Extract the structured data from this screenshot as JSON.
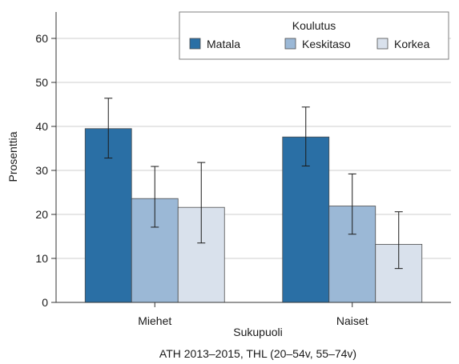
{
  "chart_data": {
    "type": "bar",
    "categories": [
      "Miehet",
      "Naiset"
    ],
    "series": [
      {
        "name": "Matala",
        "values": [
          39.5,
          37.6
        ],
        "ci_low": [
          32.8,
          31.0
        ],
        "ci_high": [
          46.4,
          44.4
        ],
        "color": "#2a6fa5"
      },
      {
        "name": "Keskitaso",
        "values": [
          23.6,
          21.9
        ],
        "ci_low": [
          17.1,
          15.5
        ],
        "ci_high": [
          30.9,
          29.2
        ],
        "color": "#9bb8d6"
      },
      {
        "name": "Korkea",
        "values": [
          21.6,
          13.2
        ],
        "ci_low": [
          13.5,
          7.7
        ],
        "ci_high": [
          31.8,
          20.6
        ],
        "color": "#d9e1ec"
      }
    ],
    "ylabel": "Prosenttia",
    "xlabel": "Sukupuoli",
    "caption": "ATH 2013–2015, THL (20–54v, 55–74v)",
    "legend_title": "Koulutus",
    "legend_position": "top-right",
    "ylim": [
      0,
      66
    ],
    "yticks": [
      0,
      10,
      20,
      30,
      40,
      50,
      60
    ],
    "grid": true,
    "grid_color": "#cfcfcf",
    "error_bars": true
  }
}
